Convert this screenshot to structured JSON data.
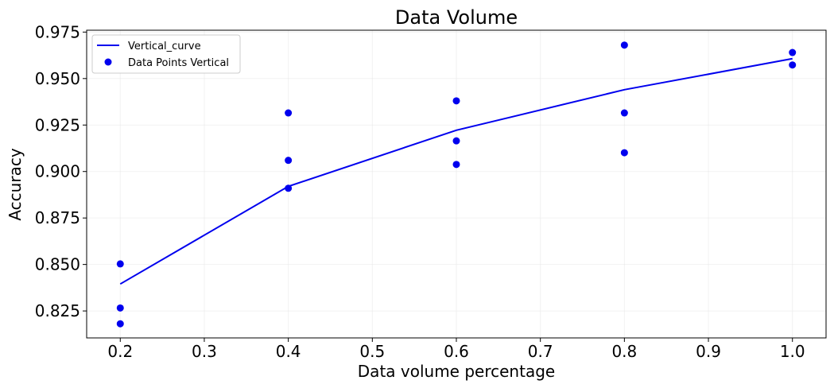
{
  "chart_data": {
    "type": "scatter",
    "title": "Data Volume",
    "xlabel": "Data volume percentage",
    "ylabel": "Accuracy",
    "xlim": [
      0.16,
      1.04
    ],
    "ylim": [
      0.8105,
      0.976
    ],
    "xticks": [
      0.2,
      0.3,
      0.4,
      0.5,
      0.6,
      0.7,
      0.8,
      0.9,
      1.0
    ],
    "xtick_labels": [
      "0.2",
      "0.3",
      "0.4",
      "0.5",
      "0.6",
      "0.7",
      "0.8",
      "0.9",
      "1.0"
    ],
    "yticks": [
      0.825,
      0.85,
      0.875,
      0.9,
      0.925,
      0.95,
      0.975
    ],
    "ytick_labels": [
      "0.825",
      "0.850",
      "0.875",
      "0.900",
      "0.925",
      "0.950",
      "0.975"
    ],
    "grid": true,
    "legend_position": "top-left",
    "series": [
      {
        "name": "Vertical_curve",
        "kind": "line",
        "color": "#0000ee",
        "x": [
          0.2,
          0.4,
          0.6,
          0.8,
          1.0
        ],
        "y": [
          0.8395,
          0.892,
          0.9222,
          0.944,
          0.9607
        ]
      },
      {
        "name": "Data Points Vertical",
        "kind": "scatter",
        "color": "#0000ee",
        "x": [
          0.2,
          0.2,
          0.2,
          0.4,
          0.4,
          0.4,
          0.6,
          0.6,
          0.6,
          0.8,
          0.8,
          0.8,
          1.0,
          1.0
        ],
        "y": [
          0.8503,
          0.8266,
          0.8181,
          0.9315,
          0.906,
          0.891,
          0.938,
          0.9165,
          0.9038,
          0.968,
          0.9315,
          0.9101,
          0.964,
          0.9573
        ]
      }
    ]
  }
}
